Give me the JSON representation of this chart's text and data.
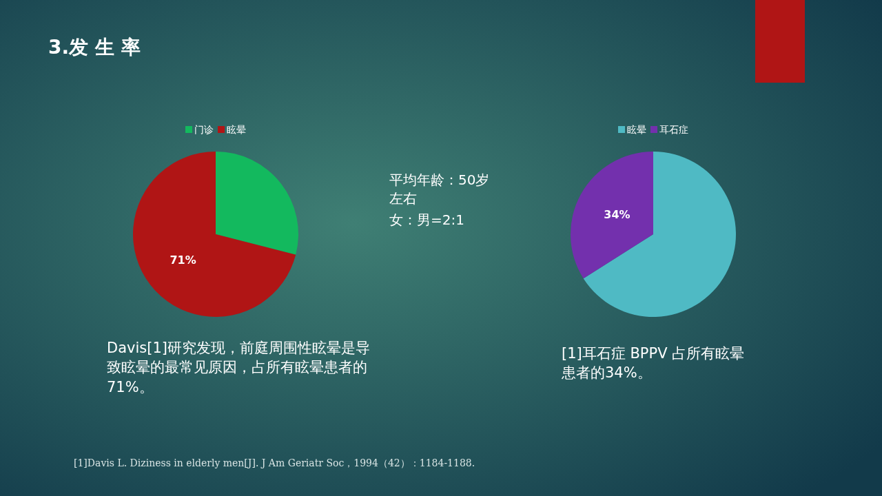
{
  "chart_data": [
    {
      "type": "pie",
      "title": "3.发 生 率",
      "categories": [
        "门诊",
        "眩晕"
      ],
      "values": [
        29,
        71
      ],
      "colors": [
        "#13b95e",
        "#b01515"
      ],
      "value_labels": [
        null,
        "71%"
      ],
      "legend": "top",
      "annotations": [
        "Davis[1]研究发现，前庭周围性眩晕是导致眩晕的最常见原因，占所有眩晕患者的 71%。"
      ]
    },
    {
      "type": "other",
      "annotations": [
        "平均年龄：50岁左右",
        "女：男=2:1"
      ]
    },
    {
      "type": "pie",
      "categories": [
        "眩晕",
        "耳石症"
      ],
      "values": [
        66,
        34
      ],
      "colors": [
        "#4fbac4",
        "#7330ad"
      ],
      "value_labels": [
        null,
        "34%"
      ],
      "legend": "top",
      "annotations": [
        "[1]耳石症 BPPV 占所有眩晕患者的34%。",
        "[1]Davis L. Diziness in elderly men[J]. J Am Geriatr Soc，1994（42）：1184-1188."
      ]
    }
  ]
}
